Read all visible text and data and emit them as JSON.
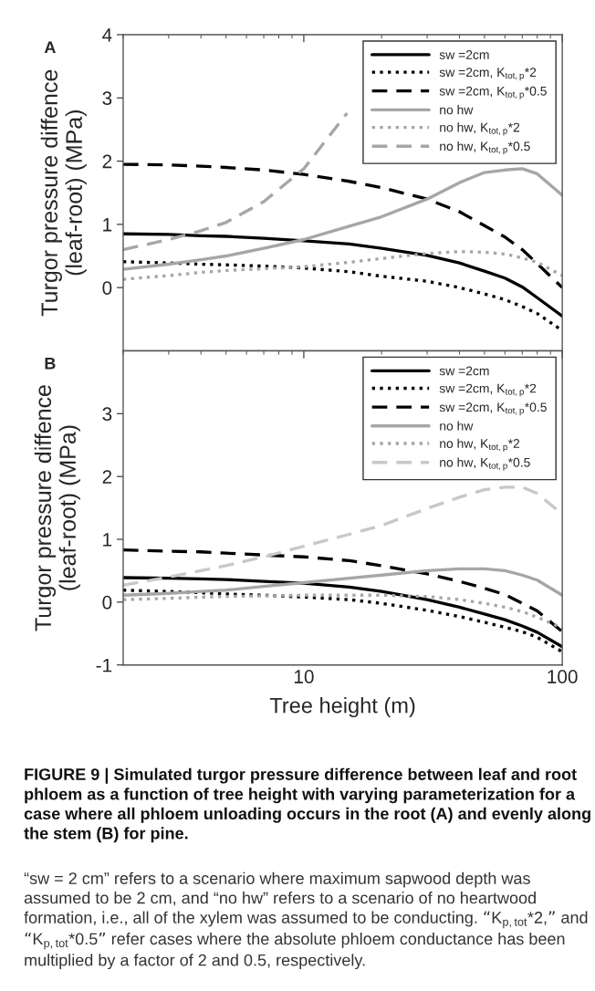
{
  "chart_data": [
    {
      "type": "line",
      "title": "A",
      "ylabel": "Turgor pressure diffence\n(leaf-root) (MPa)",
      "x": [
        2,
        3,
        4,
        5,
        7,
        10,
        15,
        20,
        30,
        40,
        50,
        60,
        70,
        80,
        100
      ],
      "log": "x",
      "xlim": [
        2,
        100
      ],
      "xticks": [
        10,
        100
      ],
      "ylim": [
        -1,
        4
      ],
      "yticks": [
        0,
        1,
        2,
        3,
        4
      ],
      "tick_labels": "y",
      "grid": false,
      "legend": "top right",
      "marker": "none",
      "series": [
        {
          "name": "sw =2cm",
          "color": "#000000",
          "line_style": "solid",
          "values": [
            0.85,
            0.84,
            0.82,
            0.81,
            0.78,
            0.74,
            0.69,
            0.62,
            0.51,
            0.39,
            0.26,
            0.15,
            0.01,
            -0.16,
            -0.45
          ]
        },
        {
          "name": "sw =2cm, K$_{tot,p}$*2",
          "color": "#000000",
          "line_style": "dotted",
          "values": [
            0.41,
            0.39,
            0.37,
            0.36,
            0.34,
            0.31,
            0.25,
            0.18,
            0.1,
            0.0,
            -0.1,
            -0.19,
            -0.3,
            -0.41,
            -0.68
          ]
        },
        {
          "name": "sw =2cm, K$_{tot,p}$*0.5",
          "color": "#000000",
          "line_style": "dashed",
          "values": [
            1.95,
            1.94,
            1.92,
            1.9,
            1.86,
            1.79,
            1.68,
            1.58,
            1.4,
            1.2,
            0.98,
            0.8,
            0.6,
            0.38,
            0.0
          ]
        },
        {
          "name": "no hw",
          "color": "#a6a6a6",
          "line_style": "solid",
          "values": [
            0.29,
            0.37,
            0.44,
            0.5,
            0.62,
            0.76,
            0.97,
            1.12,
            1.4,
            1.66,
            1.82,
            1.86,
            1.88,
            1.8,
            1.46
          ]
        },
        {
          "name": "no hw, K$_{tot,p}$*2",
          "color": "#a6a6a6",
          "line_style": "dotted",
          "values": [
            0.13,
            0.19,
            0.24,
            0.27,
            0.3,
            0.33,
            0.4,
            0.46,
            0.54,
            0.57,
            0.56,
            0.53,
            0.47,
            0.4,
            0.19
          ]
        },
        {
          "name": "no hw, K$_{tot,p}$*0.5",
          "color": "#a6a6a6",
          "line_style": "dashed",
          "x": [
            2,
            3,
            4,
            5,
            7,
            10,
            14.7
          ],
          "values": [
            0.6,
            0.76,
            0.9,
            1.03,
            1.36,
            1.88,
            2.76
          ]
        }
      ]
    },
    {
      "type": "line",
      "title": "B",
      "ylabel": "Turgor pressure diffence\n(leaf-root) (MPa)",
      "xlabel": "Tree height (m)",
      "x": [
        2,
        3,
        4,
        5,
        7,
        10,
        15,
        20,
        30,
        40,
        50,
        60,
        70,
        80,
        100
      ],
      "log": "x",
      "xlim": [
        2,
        100
      ],
      "xticks": [
        10,
        100
      ],
      "ylim": [
        -1,
        4
      ],
      "yticks": [
        -1,
        0,
        1,
        2,
        3
      ],
      "grid": false,
      "legend": "top right",
      "marker": "none",
      "series": [
        {
          "name": "sw =2cm",
          "color": "#000000",
          "line_style": "solid",
          "values": [
            0.39,
            0.38,
            0.37,
            0.36,
            0.33,
            0.3,
            0.24,
            0.17,
            0.04,
            -0.08,
            -0.19,
            -0.28,
            -0.38,
            -0.48,
            -0.71
          ]
        },
        {
          "name": "sw =2cm, K$_{tot,p}$*2",
          "color": "#000000",
          "line_style": "dotted",
          "values": [
            0.19,
            0.17,
            0.15,
            0.13,
            0.11,
            0.08,
            0.04,
            -0.02,
            -0.13,
            -0.23,
            -0.32,
            -0.4,
            -0.47,
            -0.56,
            -0.79
          ]
        },
        {
          "name": "sw =2cm, K$_{tot,p}$*0.5",
          "color": "#000000",
          "line_style": "dashed",
          "values": [
            0.83,
            0.81,
            0.8,
            0.78,
            0.75,
            0.72,
            0.66,
            0.58,
            0.45,
            0.33,
            0.22,
            0.12,
            -0.02,
            -0.14,
            -0.47
          ]
        },
        {
          "name": "no hw",
          "color": "#a6a6a6",
          "line_style": "solid",
          "values": [
            0.11,
            0.14,
            0.17,
            0.19,
            0.25,
            0.31,
            0.38,
            0.43,
            0.5,
            0.53,
            0.53,
            0.5,
            0.43,
            0.35,
            0.11
          ]
        },
        {
          "name": "no hw, K$_{tot,p}$*2",
          "color": "#a6a6a6",
          "line_style": "dotted",
          "values": [
            0.04,
            0.06,
            0.08,
            0.09,
            0.1,
            0.11,
            0.11,
            0.11,
            0.09,
            0.04,
            -0.02,
            -0.08,
            -0.15,
            -0.24,
            -0.41
          ]
        },
        {
          "name": "no hw, K$_{tot,p}$*0.5",
          "color": "#c8c8c8",
          "line_style": "dashed",
          "values": [
            0.27,
            0.4,
            0.5,
            0.58,
            0.72,
            0.89,
            1.08,
            1.22,
            1.49,
            1.67,
            1.79,
            1.83,
            1.83,
            1.73,
            1.4
          ]
        }
      ],
      "annotations": [
        "FIGURE 9 | Simulated turgor pressure difference between leaf and root phloem as a function of tree height with varying parameterization for a case where all phloem unloading occurs in the root (A) and evenly along the stem (B) for pine.",
        "“sw = 2 cm” refers to a scenario where maximum sapwood depth was assumed to be 2 cm, and “no hw” refers to a scenario of no heartwood formation, i.e., all of the xylem was assumed to be conducting. “K$_{p,tot}$*2,” and “K$_{p,tot}$*0.5” refer cases where the absolute phloem conductance has been multiplied by a factor of 2 and 0.5, respectively."
      ]
    }
  ]
}
